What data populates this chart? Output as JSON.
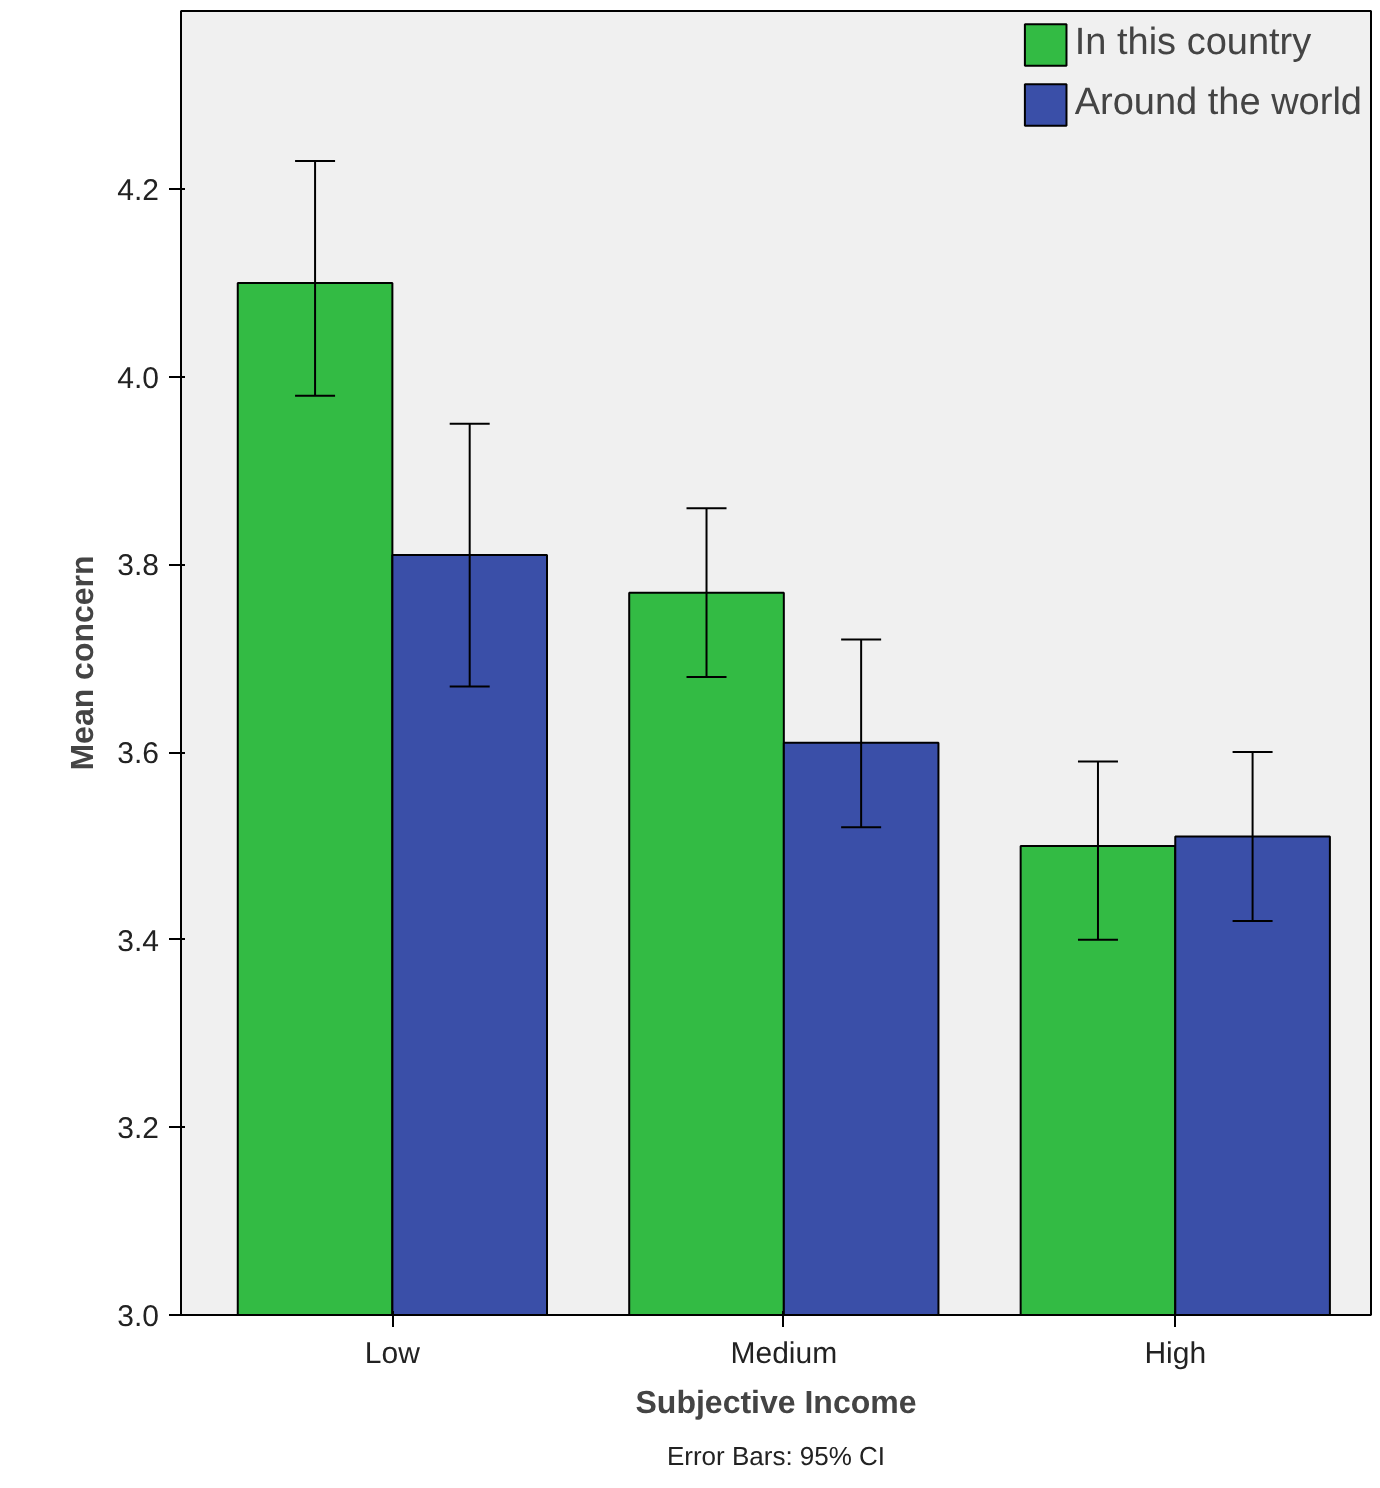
{
  "chart_data": {
    "type": "bar",
    "xlabel": "Subjective Income",
    "ylabel": "Mean concern",
    "categories": [
      "Low",
      "Medium",
      "High"
    ],
    "series": [
      {
        "name": "In this country",
        "color": "#33bb44",
        "values": [
          4.1,
          3.77,
          3.5
        ],
        "errors": [
          [
            3.98,
            4.23
          ],
          [
            3.68,
            3.86
          ],
          [
            3.4,
            3.59
          ]
        ]
      },
      {
        "name": "Around the world",
        "color": "#3a4fa8",
        "values": [
          3.81,
          3.61,
          3.51
        ],
        "errors": [
          [
            3.67,
            3.95
          ],
          [
            3.52,
            3.72
          ],
          [
            3.42,
            3.6
          ]
        ]
      }
    ],
    "ylim": [
      3.0,
      4.39
    ],
    "yticks": [
      {
        "value": 3.0,
        "label": "3.0"
      },
      {
        "value": 3.2,
        "label": "3.2"
      },
      {
        "value": 3.4,
        "label": "3.4"
      },
      {
        "value": 3.6,
        "label": "3.6"
      },
      {
        "value": 3.8,
        "label": "3.8"
      },
      {
        "value": 4.0,
        "label": "4.0"
      },
      {
        "value": 4.2,
        "label": "4.2"
      }
    ],
    "grid": false,
    "legend": "top right",
    "annotations": [
      "Error Bars: 95% CI"
    ]
  }
}
